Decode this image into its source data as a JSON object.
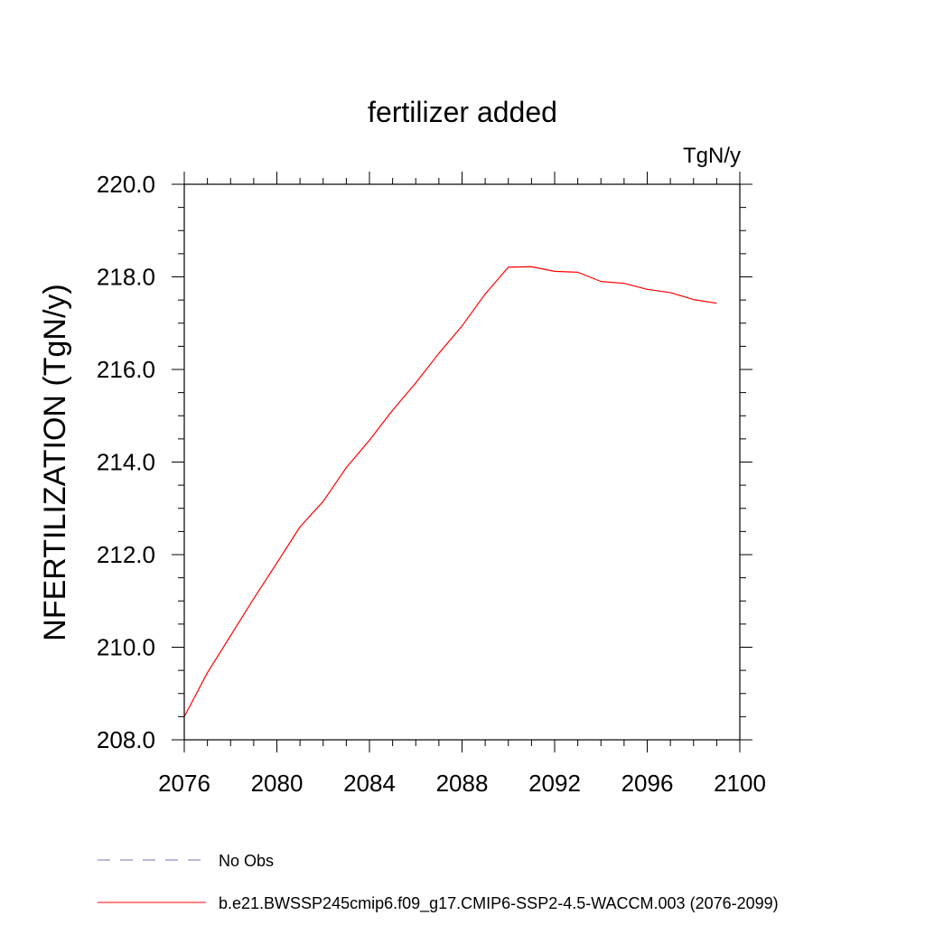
{
  "chart_data": {
    "type": "line",
    "title": "fertilizer added",
    "units_label": "TgN/y",
    "ylabel": "NFERTILIZATION  (TgN/y)",
    "xlabel": "",
    "xlim": [
      2076,
      2100
    ],
    "ylim": [
      208.0,
      220.0
    ],
    "x_ticks": [
      "2076",
      "2080",
      "2084",
      "2088",
      "2092",
      "2096",
      "2100"
    ],
    "y_ticks": [
      "208.0",
      "210.0",
      "212.0",
      "214.0",
      "216.0",
      "218.0",
      "220.0"
    ],
    "grid": false,
    "legend_position": "bottom-left",
    "series": [
      {
        "name": "b.e21.BWSSP245cmip6.f09_g17.CMIP6-SSP2-4.5-WACCM.003 (2076-2099)",
        "color": "#ff0000",
        "dash": "solid",
        "x": [
          2076,
          2077,
          2078,
          2079,
          2080,
          2081,
          2082,
          2083,
          2084,
          2085,
          2086,
          2087,
          2088,
          2089,
          2090,
          2091,
          2092,
          2093,
          2094,
          2095,
          2096,
          2097,
          2098,
          2099
        ],
        "y": [
          208.5,
          209.45,
          210.25,
          211.05,
          211.82,
          212.6,
          213.15,
          213.88,
          214.47,
          215.12,
          215.71,
          216.35,
          216.94,
          217.63,
          218.21,
          218.22,
          218.12,
          218.1,
          217.9,
          217.86,
          217.73,
          217.66,
          217.51,
          217.43
        ]
      }
    ],
    "legend": [
      {
        "label": "No Obs",
        "color": "#7b6fb5",
        "dash": "dashed"
      },
      {
        "label": "b.e21.BWSSP245cmip6.f09_g17.CMIP6-SSP2-4.5-WACCM.003 (2076-2099)",
        "color": "#ff0000",
        "dash": "solid"
      }
    ]
  }
}
